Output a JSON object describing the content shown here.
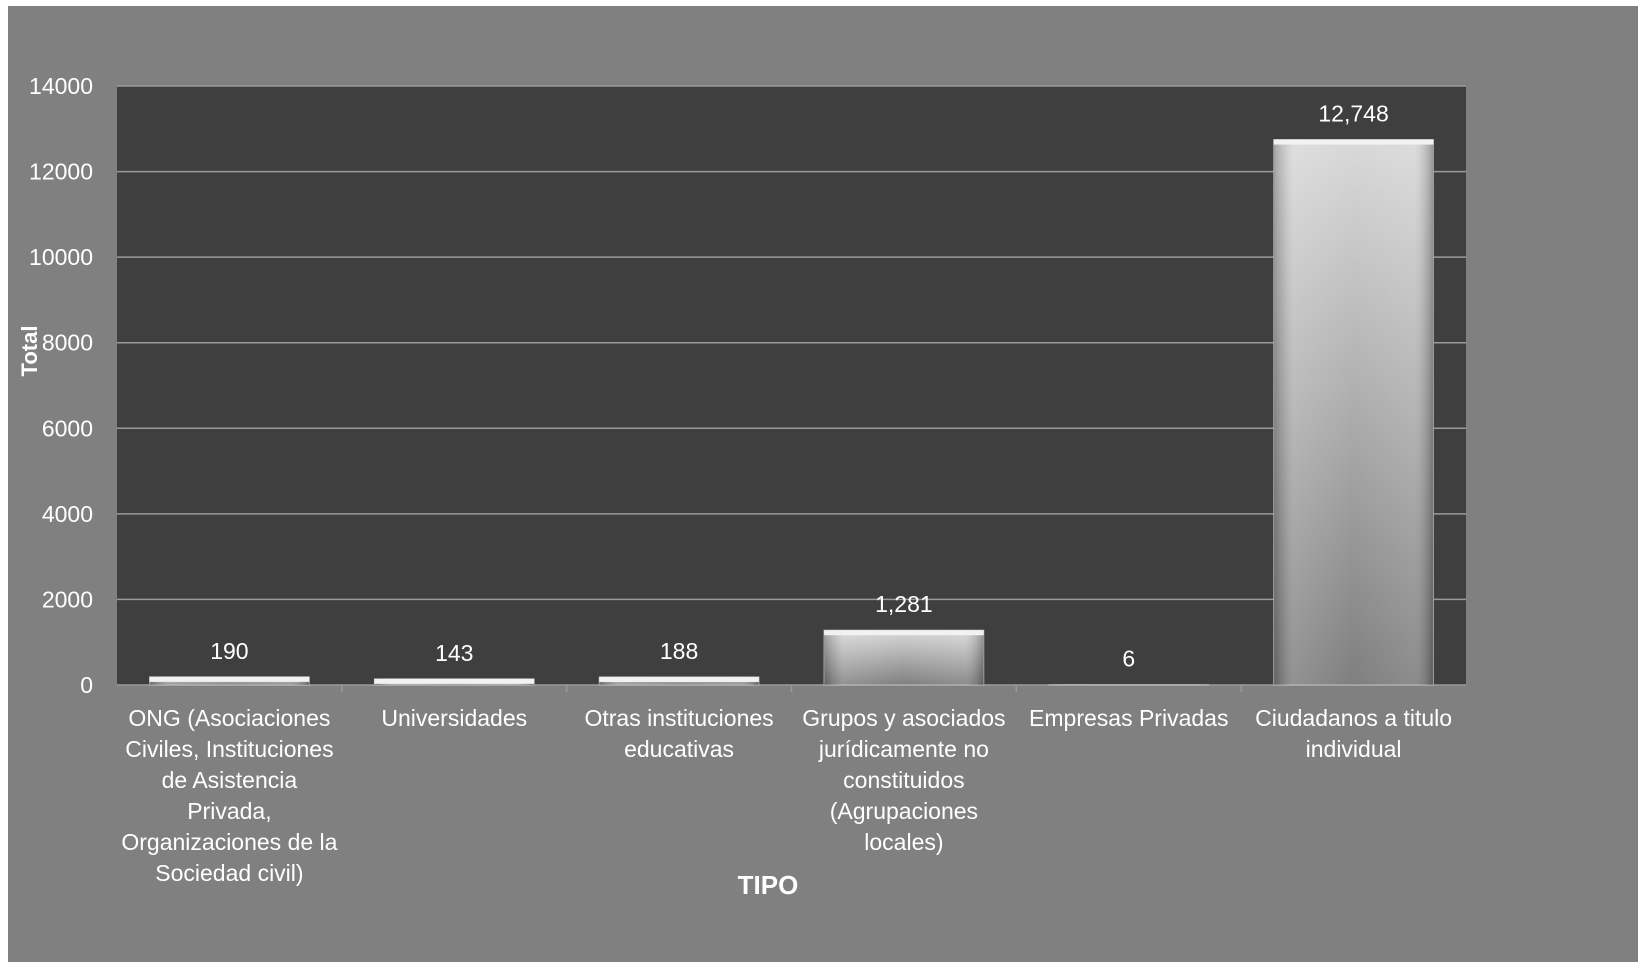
{
  "chart_data": {
    "type": "bar",
    "title": "",
    "xlabel": "TIPO",
    "ylabel": "Total",
    "ylim": [
      0,
      14000
    ],
    "yticks": [
      0,
      2000,
      4000,
      6000,
      8000,
      10000,
      12000,
      14000
    ],
    "ytick_labels": [
      "0",
      "2000",
      "4000",
      "6000",
      "8000",
      "10000",
      "12000",
      "14000"
    ],
    "grid": true,
    "legend": "none",
    "categories": [
      "ONG (Asociaciones Civiles, Instituciones de Asistencia Privada, Organizaciones de la Sociedad civil)",
      "Universidades",
      "Otras instituciones educativas",
      "Grupos y asociados jurídicamente no constituidos (Agrupaciones locales)",
      "Empresas Privadas",
      "Ciudadanos a titulo individual"
    ],
    "category_lines": [
      [
        "ONG (Asociaciones",
        "Civiles, Instituciones",
        "de Asistencia",
        "Privada,",
        "Organizaciones de la",
        "Sociedad civil)"
      ],
      [
        "Universidades"
      ],
      [
        "Otras instituciones",
        "educativas"
      ],
      [
        "Grupos y asociados",
        "jurídicamente no",
        "constituidos",
        "(Agrupaciones",
        "locales)"
      ],
      [
        "Empresas Privadas"
      ],
      [
        "Ciudadanos a titulo",
        "individual"
      ]
    ],
    "values": [
      190,
      143,
      188,
      1281,
      6,
      12748
    ],
    "data_labels": [
      "190",
      "143",
      "188",
      "1,281",
      "6",
      "12,748"
    ],
    "colors": {
      "frame_background": "#808080",
      "plot_background": "#3f3f3f",
      "gridline": "#9a9a9a",
      "text": "#ffffff",
      "bar_light": "#d9d9d9",
      "bar_dark": "#7f7f7f"
    }
  }
}
